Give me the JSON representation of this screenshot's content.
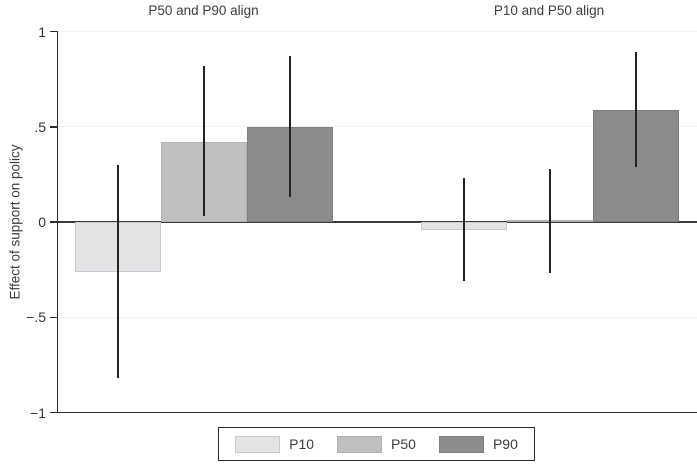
{
  "chart_data": {
    "type": "bar",
    "ylabel": "Effect of support on policy",
    "ylim": [
      -1,
      1
    ],
    "yticks": [
      1,
      0.5,
      0,
      -0.5,
      -1
    ],
    "ytick_labels": [
      "1",
      ".5",
      "0",
      "−.5",
      "−1"
    ],
    "grid": true,
    "legend_position": "bottom",
    "legend": [
      "P10",
      "P50",
      "P90"
    ],
    "series": [
      {
        "name": "P10",
        "fill": "#e4e4e6",
        "border": "#c9c9cd"
      },
      {
        "name": "P50",
        "fill": "#bfbfc1",
        "border": "#b0b0b3"
      },
      {
        "name": "P90",
        "fill": "#8b8b8e",
        "border": "#7f7f83"
      }
    ],
    "panels": [
      {
        "title": "P50 and P90 align",
        "bars": [
          {
            "series": "P10",
            "value": -0.26,
            "ci_low": -0.82,
            "ci_high": 0.3
          },
          {
            "series": "P50",
            "value": 0.42,
            "ci_low": 0.03,
            "ci_high": 0.82
          },
          {
            "series": "P90",
            "value": 0.5,
            "ci_low": 0.13,
            "ci_high": 0.87
          }
        ]
      },
      {
        "title": "P10 and P50 align",
        "bars": [
          {
            "series": "P10",
            "value": -0.04,
            "ci_low": -0.31,
            "ci_high": 0.23
          },
          {
            "series": "P50",
            "value": 0.01,
            "ci_low": -0.27,
            "ci_high": 0.28
          },
          {
            "series": "P90",
            "value": 0.59,
            "ci_low": 0.29,
            "ci_high": 0.89
          }
        ]
      }
    ]
  }
}
